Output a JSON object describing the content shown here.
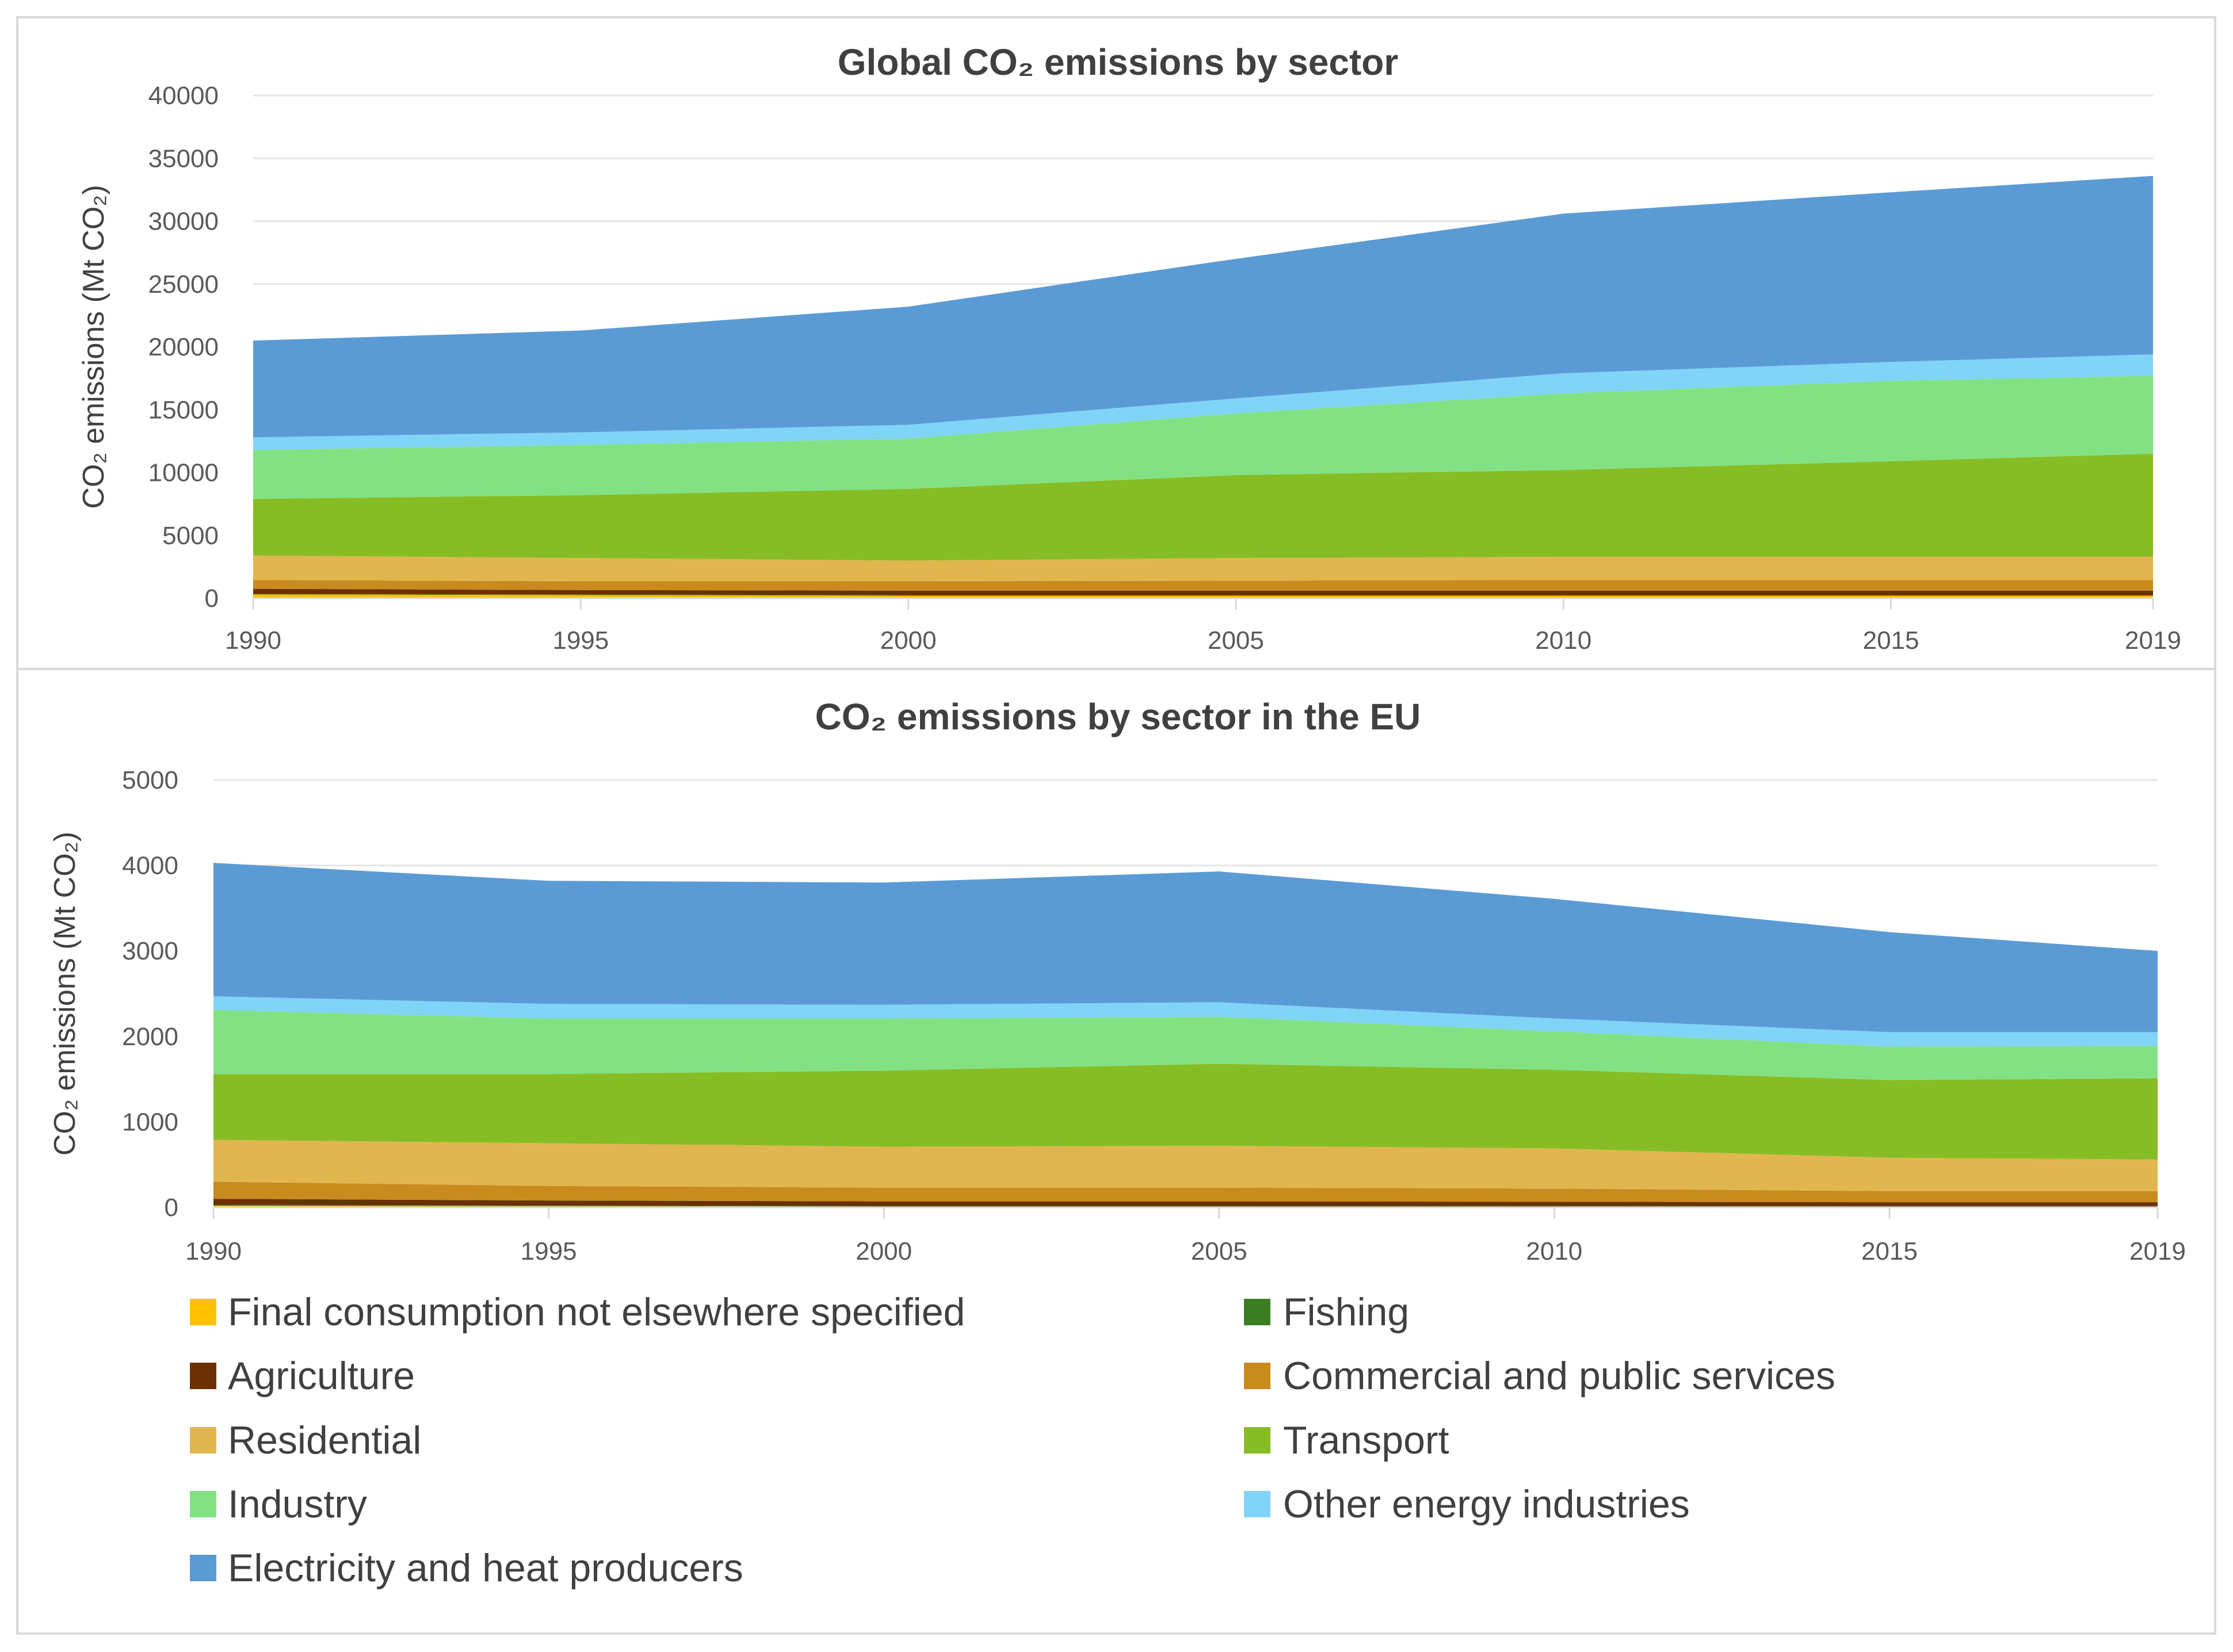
{
  "chart_data": [
    {
      "type": "area",
      "stacked": true,
      "title": "Global CO₂ emissions by sector",
      "xlabel": "",
      "ylabel": "CO₂ emissions (Mt CO₂)",
      "x": [
        1990,
        1995,
        2000,
        2005,
        2010,
        2015,
        2019
      ],
      "xticks": [
        "1990",
        "1995",
        "2000",
        "2005",
        "2010",
        "2015",
        "2019"
      ],
      "ylim": [
        0,
        40000
      ],
      "yticks": [
        "0",
        "5000",
        "10000",
        "15000",
        "20000",
        "25000",
        "30000",
        "35000",
        "40000"
      ],
      "ytick_values": [
        0,
        5000,
        10000,
        15000,
        20000,
        25000,
        30000,
        35000,
        40000
      ],
      "grid": true,
      "series": [
        {
          "name": "Final consumption not elsewhere specified",
          "values": [
            300,
            250,
            200,
            200,
            200,
            200,
            200
          ]
        },
        {
          "name": "Fishing",
          "values": [
            50,
            50,
            50,
            50,
            50,
            50,
            50
          ]
        },
        {
          "name": "Agriculture",
          "values": [
            400,
            350,
            350,
            350,
            350,
            350,
            350
          ]
        },
        {
          "name": "Commercial and public services",
          "values": [
            700,
            700,
            750,
            800,
            850,
            850,
            850
          ]
        },
        {
          "name": "Residential",
          "values": [
            1950,
            1850,
            1650,
            1800,
            1850,
            1850,
            1850
          ]
        },
        {
          "name": "Transport",
          "values": [
            4500,
            5000,
            5700,
            6600,
            6900,
            7600,
            8200
          ]
        },
        {
          "name": "Industry",
          "values": [
            3900,
            4000,
            4000,
            4900,
            6100,
            6400,
            6200
          ]
        },
        {
          "name": "Other energy industries",
          "values": [
            1000,
            1000,
            1100,
            1200,
            1600,
            1500,
            1700
          ]
        },
        {
          "name": "Electricity and heat producers",
          "values": [
            7700,
            8100,
            9400,
            11100,
            12700,
            13500,
            14200
          ]
        }
      ]
    },
    {
      "type": "area",
      "stacked": true,
      "title": "CO₂ emissions by sector in the EU",
      "xlabel": "",
      "ylabel": "CO₂ emissions (Mt CO₂)",
      "x": [
        1990,
        1995,
        2000,
        2005,
        2010,
        2015,
        2019
      ],
      "xticks": [
        "1990",
        "1995",
        "2000",
        "2005",
        "2010",
        "2015",
        "2019"
      ],
      "ylim": [
        0,
        5000
      ],
      "yticks": [
        "0",
        "1000",
        "2000",
        "3000",
        "4000",
        "5000"
      ],
      "ytick_values": [
        0,
        1000,
        2000,
        3000,
        4000,
        5000
      ],
      "grid": true,
      "series": [
        {
          "name": "Final consumption not elsewhere specified",
          "values": [
            20,
            15,
            10,
            10,
            10,
            10,
            10
          ]
        },
        {
          "name": "Fishing",
          "values": [
            10,
            8,
            7,
            7,
            6,
            5,
            5
          ]
        },
        {
          "name": "Agriculture",
          "values": [
            70,
            57,
            53,
            53,
            49,
            45,
            45
          ]
        },
        {
          "name": "Commercial and public services",
          "values": [
            200,
            170,
            160,
            160,
            155,
            130,
            130
          ]
        },
        {
          "name": "Residential",
          "values": [
            490,
            500,
            480,
            490,
            470,
            390,
            370
          ]
        },
        {
          "name": "Transport",
          "values": [
            770,
            810,
            890,
            960,
            920,
            910,
            950
          ]
        },
        {
          "name": "Industry",
          "values": [
            750,
            650,
            610,
            550,
            450,
            390,
            380
          ]
        },
        {
          "name": "Other energy industries",
          "values": [
            160,
            170,
            160,
            170,
            150,
            170,
            160
          ]
        },
        {
          "name": "Electricity and heat producers",
          "values": [
            1560,
            1440,
            1430,
            1530,
            1400,
            1170,
            950
          ]
        }
      ]
    }
  ],
  "legend": {
    "placement": "bottom",
    "items": [
      {
        "label": "Final consumption not elsewhere specified",
        "color": "#ffc000"
      },
      {
        "label": "Fishing",
        "color": "#3b7d23"
      },
      {
        "label": "Agriculture",
        "color": "#6b3000"
      },
      {
        "label": "Commercial and public services",
        "color": "#c98a1e"
      },
      {
        "label": "Residential",
        "color": "#e2b64f"
      },
      {
        "label": "Transport",
        "color": "#86bd24"
      },
      {
        "label": "Industry",
        "color": "#82e283"
      },
      {
        "label": "Other energy industries",
        "color": "#80d4f8"
      },
      {
        "label": "Electricity and heat producers",
        "color": "#5b9bd5"
      }
    ]
  }
}
